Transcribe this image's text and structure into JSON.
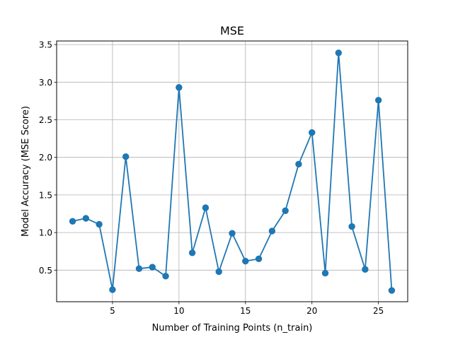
{
  "chart_data": {
    "type": "line",
    "title": "MSE",
    "xlabel": "Number of Training Points (n_train)",
    "ylabel": "Model Accuracy (MSE Score)",
    "x": [
      2,
      3,
      4,
      5,
      6,
      7,
      8,
      9,
      10,
      11,
      12,
      13,
      14,
      15,
      16,
      17,
      18,
      19,
      20,
      21,
      22,
      23,
      24,
      25,
      26
    ],
    "series": [
      {
        "values": [
          1.15,
          1.19,
          1.11,
          0.24,
          2.01,
          0.52,
          0.54,
          0.42,
          2.93,
          0.73,
          1.33,
          0.48,
          0.99,
          0.62,
          0.65,
          1.02,
          1.29,
          1.91,
          2.33,
          0.46,
          3.39,
          1.08,
          0.51,
          2.76,
          0.23
        ],
        "color": "#1f77b4",
        "marker": "circle"
      }
    ],
    "xlim": [
      0.8,
      27.2
    ],
    "ylim": [
      0.08,
      3.548
    ],
    "xticks": [
      5,
      10,
      15,
      20,
      25
    ],
    "yticks": [
      0.5,
      1.0,
      1.5,
      2.0,
      2.5,
      3.0,
      3.5
    ],
    "xtick_labels": [
      "5",
      "10",
      "15",
      "20",
      "25"
    ],
    "ytick_labels": [
      "0.5",
      "1.0",
      "1.5",
      "2.0",
      "2.5",
      "3.0",
      "3.5"
    ],
    "grid": true,
    "legend": false
  }
}
